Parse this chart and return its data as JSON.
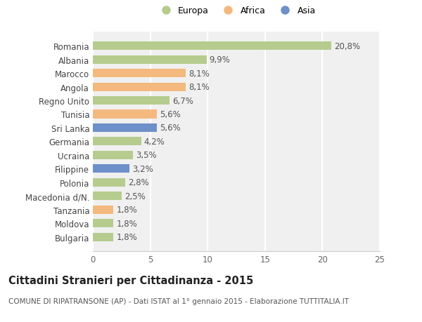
{
  "categories": [
    "Bulgaria",
    "Moldova",
    "Tanzania",
    "Macedonia d/N.",
    "Polonia",
    "Filippine",
    "Ucraina",
    "Germania",
    "Sri Lanka",
    "Tunisia",
    "Regno Unito",
    "Angola",
    "Marocco",
    "Albania",
    "Romania"
  ],
  "values": [
    1.8,
    1.8,
    1.8,
    2.5,
    2.8,
    3.2,
    3.5,
    4.2,
    5.6,
    5.6,
    6.7,
    8.1,
    8.1,
    9.9,
    20.8
  ],
  "labels": [
    "1,8%",
    "1,8%",
    "1,8%",
    "2,5%",
    "2,8%",
    "3,2%",
    "3,5%",
    "4,2%",
    "5,6%",
    "5,6%",
    "6,7%",
    "8,1%",
    "8,1%",
    "9,9%",
    "20,8%"
  ],
  "continents": [
    "Europa",
    "Europa",
    "Africa",
    "Europa",
    "Europa",
    "Asia",
    "Europa",
    "Europa",
    "Asia",
    "Africa",
    "Europa",
    "Africa",
    "Africa",
    "Europa",
    "Europa"
  ],
  "colors": {
    "Europa": "#b5cc8e",
    "Africa": "#f4b97f",
    "Asia": "#6e8fc9"
  },
  "xlim": [
    0,
    25
  ],
  "xticks": [
    0,
    5,
    10,
    15,
    20,
    25
  ],
  "title": "Cittadini Stranieri per Cittadinanza - 2015",
  "subtitle": "COMUNE DI RIPATRANSONE (AP) - Dati ISTAT al 1° gennaio 2015 - Elaborazione TUTTITALIA.IT",
  "background_color": "#ffffff",
  "plot_bg_color": "#f0f0f0",
  "grid_color": "#ffffff",
  "bar_height": 0.62,
  "label_fontsize": 8.5,
  "tick_fontsize": 8.5,
  "title_fontsize": 10.5,
  "subtitle_fontsize": 7.5
}
